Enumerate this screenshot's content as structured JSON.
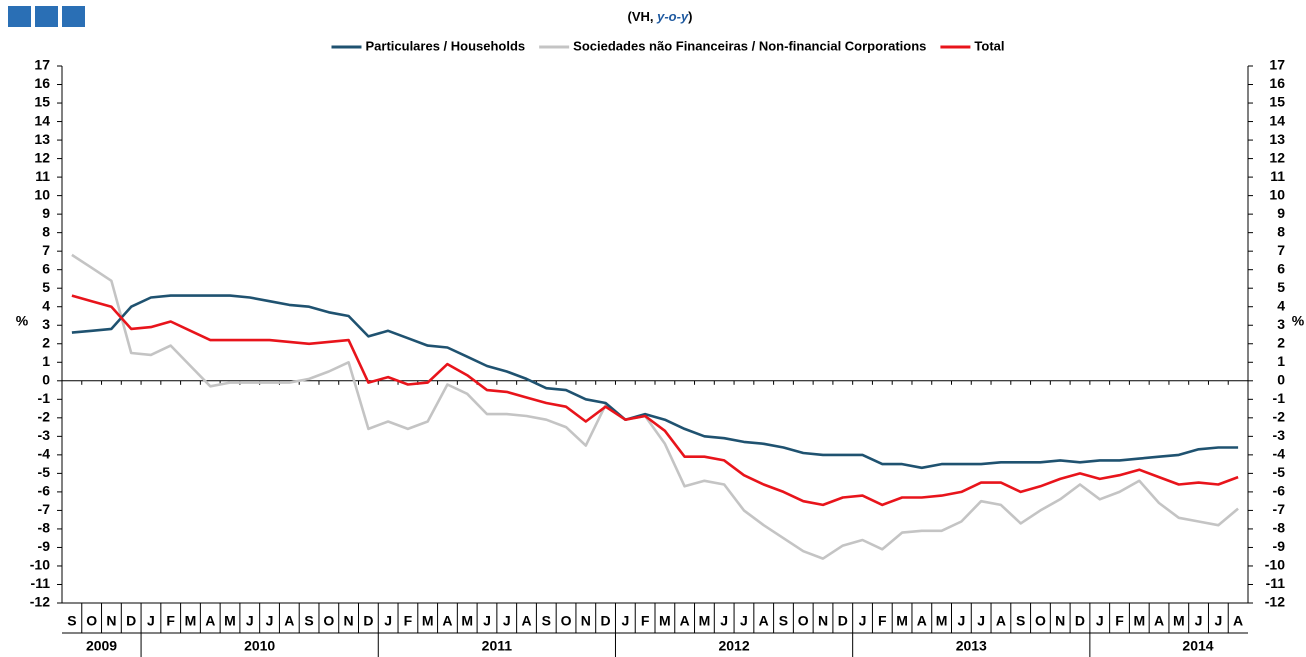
{
  "chart_data": {
    "type": "line",
    "title": [
      "(VH, ",
      "y-o-y",
      ")"
    ],
    "y_label": "%",
    "categories": [
      "S",
      "O",
      "N",
      "D",
      "J",
      "F",
      "M",
      "A",
      "M",
      "J",
      "J",
      "A",
      "S",
      "O",
      "N",
      "D",
      "J",
      "F",
      "M",
      "A",
      "M",
      "J",
      "J",
      "A",
      "S",
      "O",
      "N",
      "D",
      "J",
      "F",
      "M",
      "A",
      "M",
      "J",
      "J",
      "A",
      "S",
      "O",
      "N",
      "D",
      "J",
      "F",
      "M",
      "A",
      "M",
      "J",
      "J",
      "A",
      "S",
      "O",
      "N",
      "D",
      "J",
      "F",
      "M",
      "A",
      "M",
      "J",
      "J",
      "A"
    ],
    "years": [
      "2009",
      "2010",
      "2011",
      "2012",
      "2013",
      "2014"
    ],
    "series": [
      {
        "name": "Particulares / Households",
        "color": "#1f5270",
        "values": [
          2.6,
          2.7,
          2.8,
          4.0,
          4.5,
          4.6,
          4.6,
          4.6,
          4.6,
          4.5,
          4.3,
          4.1,
          4.0,
          3.7,
          3.5,
          2.4,
          2.7,
          2.3,
          1.9,
          1.8,
          1.3,
          0.8,
          0.5,
          0.1,
          -0.4,
          -0.5,
          -1.0,
          -1.2,
          -2.1,
          -1.8,
          -2.1,
          -2.6,
          -3.0,
          -3.1,
          -3.3,
          -3.4,
          -3.6,
          -3.9,
          -4.0,
          -4.0,
          -4.0,
          -4.5,
          -4.5,
          -4.7,
          -4.5,
          -4.5,
          -4.5,
          -4.4,
          -4.4,
          -4.4,
          -4.3,
          -4.4,
          -4.3,
          -4.3,
          -4.2,
          -4.1,
          -4.0,
          -3.7,
          -3.6,
          -3.6
        ]
      },
      {
        "name": "Sociedades não Financeiras / Non-financial Corporations",
        "color": "#c4c4c4",
        "values": [
          6.8,
          6.1,
          5.4,
          1.5,
          1.4,
          1.9,
          0.8,
          -0.3,
          -0.1,
          -0.1,
          -0.1,
          -0.1,
          0.1,
          0.5,
          1.0,
          -2.6,
          -2.2,
          -2.6,
          -2.2,
          -0.2,
          -0.7,
          -1.8,
          -1.8,
          -1.9,
          -2.1,
          -2.5,
          -3.5,
          -1.3,
          -2.1,
          -1.9,
          -3.4,
          -5.7,
          -5.4,
          -5.6,
          -7.0,
          -7.8,
          -8.5,
          -9.2,
          -9.6,
          -8.9,
          -8.6,
          -9.1,
          -8.2,
          -8.1,
          -8.1,
          -7.6,
          -6.5,
          -6.7,
          -7.7,
          -7.0,
          -6.4,
          -5.6,
          -6.4,
          -6.0,
          -5.4,
          -6.6,
          -7.4,
          -7.6,
          -7.8,
          -6.9
        ]
      },
      {
        "name": "Total",
        "color": "#e8141b",
        "values": [
          4.6,
          4.3,
          4.0,
          2.8,
          2.9,
          3.2,
          2.7,
          2.2,
          2.2,
          2.2,
          2.2,
          2.1,
          2.0,
          2.1,
          2.2,
          -0.1,
          0.2,
          -0.2,
          -0.1,
          0.9,
          0.3,
          -0.5,
          -0.6,
          -0.9,
          -1.2,
          -1.4,
          -2.2,
          -1.4,
          -2.1,
          -1.9,
          -2.7,
          -4.1,
          -4.1,
          -4.3,
          -5.1,
          -5.6,
          -6.0,
          -6.5,
          -6.7,
          -6.3,
          -6.2,
          -6.7,
          -6.3,
          -6.3,
          -6.2,
          -6.0,
          -5.5,
          -5.5,
          -6.0,
          -5.7,
          -5.3,
          -5.0,
          -5.3,
          -5.1,
          -4.8,
          -5.2,
          -5.6,
          -5.5,
          -5.6,
          -5.2
        ]
      }
    ],
    "ylim": [
      -12,
      17
    ],
    "yticks": [
      -12,
      -11,
      -10,
      -9,
      -8,
      -7,
      -6,
      -5,
      -4,
      -3,
      -2,
      -1,
      0,
      1,
      2,
      3,
      4,
      5,
      6,
      7,
      8,
      9,
      10,
      11,
      12,
      13,
      14,
      15,
      16,
      17
    ]
  }
}
